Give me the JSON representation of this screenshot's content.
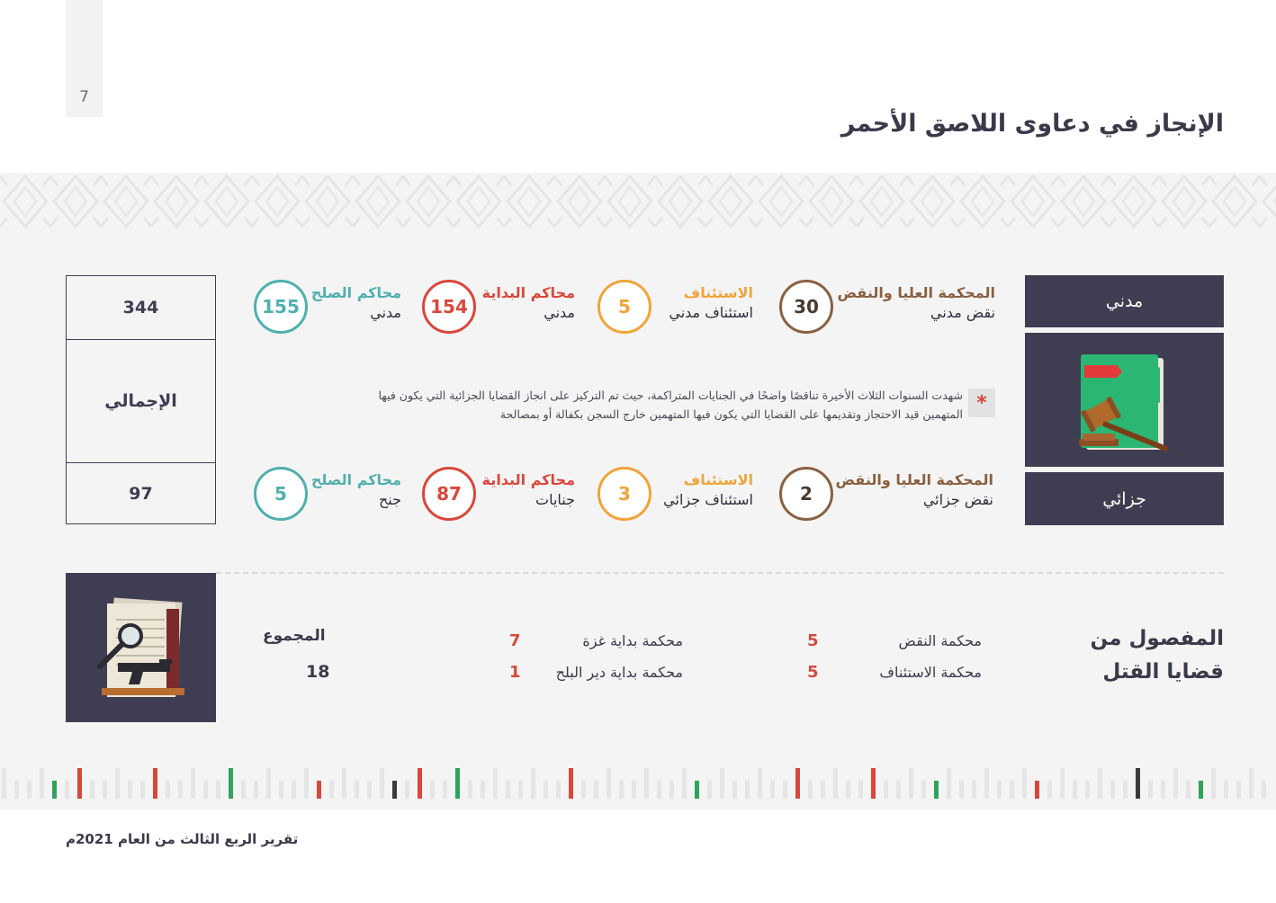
{
  "page_number": "7",
  "title": "الإنجاز في دعاوى اللاصق الأحمر",
  "civil": {
    "label": "مدني",
    "stats": [
      {
        "title": "المحكمة العليا والنقض",
        "subtitle": "نقض مدني",
        "value": "30",
        "color": "#8a6040"
      },
      {
        "title": "الاستئناف",
        "subtitle": "استئناف مدني",
        "value": "5",
        "color": "#f0a43a"
      },
      {
        "title": "محاكم البداية",
        "subtitle": "مدني",
        "value": "154",
        "color": "#d9473b"
      },
      {
        "title": "محاكم الصلح",
        "subtitle": "مدني",
        "value": "155",
        "color": "#4fb0ae"
      }
    ]
  },
  "criminal": {
    "label": "جزائي",
    "stats": [
      {
        "title": "المحكمة العليا والنقض",
        "subtitle": "نقض جزائي",
        "value": "2",
        "color": "#8a6040"
      },
      {
        "title": "الاستئناف",
        "subtitle": "استئناف جزائي",
        "value": "3",
        "color": "#f0a43a"
      },
      {
        "title": "محاكم البداية",
        "subtitle": "جنايات",
        "value": "87",
        "color": "#d9473b"
      },
      {
        "title": "محاكم الصلح",
        "subtitle": "جنح",
        "value": "5",
        "color": "#4fb0ae"
      }
    ]
  },
  "note": {
    "marker": "*",
    "line1": "شهدت السنوات الثلاث الأخيرة تناقصًا واضحًا في الجنايات المتراكمة، حيث تم التركيز على انجاز القضايا الجزائية التي يكون فيها",
    "line2": "المتهمين قيد الاحتجاز وتقديمها على القضايا التي يكون فيها المتهمين خارج السجن بكفالة أو بمصالحة"
  },
  "totals": {
    "civil_total": "344",
    "label": "الإجمالي",
    "criminal_total": "97"
  },
  "murder": {
    "title_line1": "المفصول من",
    "title_line2": "قضايا القتل",
    "rows": [
      {
        "court": "محكمة النقض",
        "value": "5"
      },
      {
        "court": "محكمة الاستئناف",
        "value": "5"
      },
      {
        "court": "محكمة بداية غزة",
        "value": "7"
      },
      {
        "court": "محكمة بداية دير البلح",
        "value": "1"
      }
    ],
    "sum_label": "المجموع",
    "sum_value": "18"
  },
  "footer": "تقرير الربع الثالث من العام 2021م",
  "colors": {
    "navy": "#3e3d52",
    "red": "#d9473b",
    "green": "#2fa35a",
    "orange": "#f0a43a",
    "teal": "#4fb0ae",
    "brown": "#8a6040"
  },
  "icons": [
    "folder-gavel-icon",
    "documents-magnifier-gun-icon"
  ]
}
